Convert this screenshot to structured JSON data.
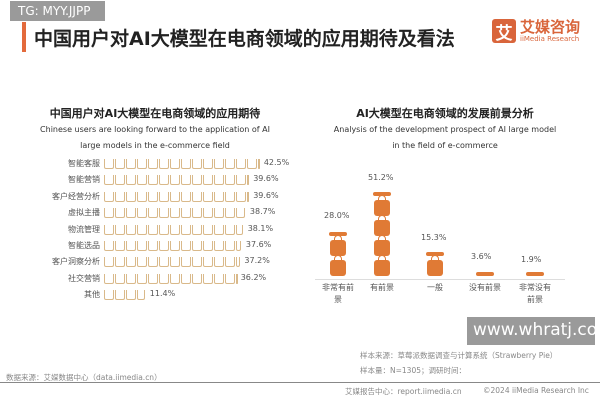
{
  "header": {
    "title": "中国用户对AI大模型在电商领域的应用期待及看法",
    "logo_cn": "艾媒咨询",
    "logo_en": "iiMedia Research",
    "logo_mark": "艾"
  },
  "watermarks": {
    "top": "TG: MYY.JJPP",
    "bottom": "www.whratj.com"
  },
  "chart_data": [
    {
      "type": "bar",
      "title": "中国用户对AI大模型在电商领域的应用期待",
      "subtitle": "Chinese users are looking forward to the application of AI large models in the e-commerce field",
      "orientation": "horizontal",
      "icon": "cart-icon",
      "color": "#d9b98a",
      "categories": [
        "智能客服",
        "智能营销",
        "客户经营分析",
        "虚拟主播",
        "物流管理",
        "智能选品",
        "客户洞察分析",
        "社交营销",
        "其他"
      ],
      "values": [
        42.5,
        39.6,
        39.6,
        38.7,
        38.1,
        37.6,
        37.2,
        36.2,
        11.4
      ],
      "labels": [
        "42.5%",
        "39.6%",
        "39.6%",
        "38.7%",
        "38.1%",
        "37.6%",
        "37.2%",
        "36.2%",
        "11.4%"
      ]
    },
    {
      "type": "bar",
      "title": "AI大模型在电商领域的发展前景分析",
      "subtitle": "Analysis of the development prospect of AI large model in the field of e-commerce",
      "orientation": "vertical",
      "icon": "handbag-icon",
      "color": "#e07a35",
      "categories": [
        "非常有前景",
        "有前景",
        "一般",
        "没有前景",
        "非常没有前景"
      ],
      "values": [
        28.0,
        51.2,
        15.3,
        3.6,
        1.9
      ],
      "labels": [
        "28.0%",
        "51.2%",
        "15.3%",
        "3.6%",
        "1.9%"
      ]
    }
  ],
  "footer": {
    "source": "数据来源：艾媒数据中心（data.iimedia.cn）",
    "sample_source": "样本来源：草莓派数据调查与计算系统（Strawberry Pie）",
    "sample_size": "样本量：N=1305；调研时间：",
    "report_center": "艾媒报告中心：report.iimedia.cn",
    "copyright": "©2024 iiMedia Research Inc"
  }
}
